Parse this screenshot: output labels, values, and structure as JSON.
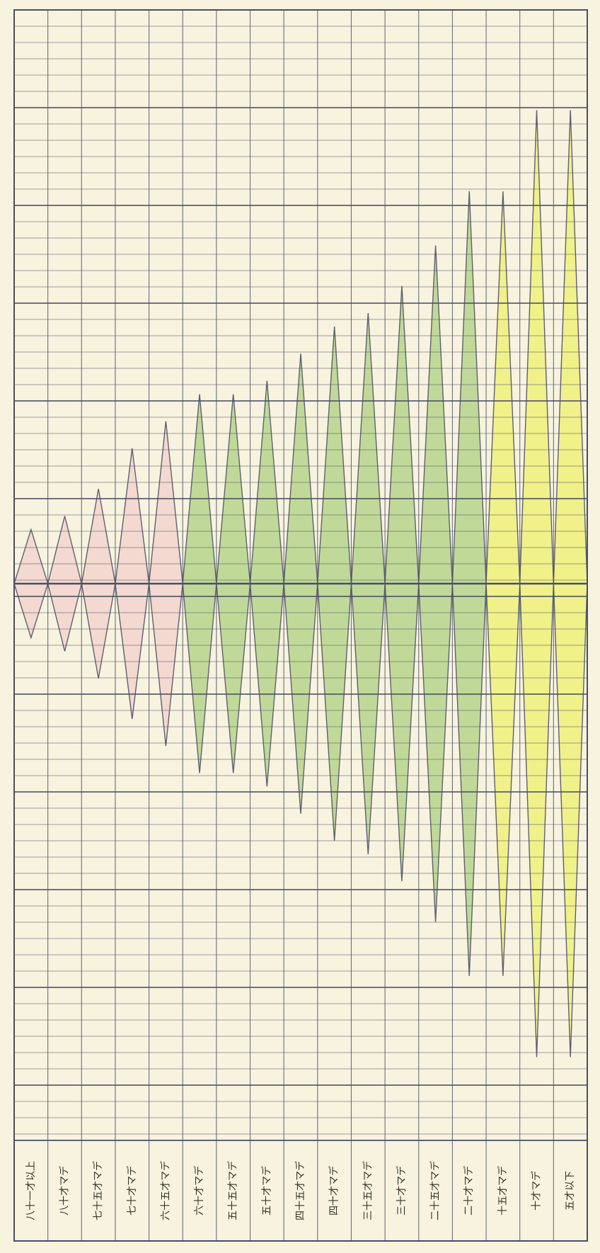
{
  "chart_data": {
    "type": "bar",
    "orientation": "rotated",
    "style": "hand-drawn diamond spindle profile on graph paper, symmetric about a central baseline",
    "grid": true,
    "legend": "none",
    "categories": [
      "八十一才以上",
      "八十才マデ",
      "七十五才マデ",
      "七十才マデ",
      "六十五才マデ",
      "六十才マデ",
      "五十五才マデ",
      "五十才マデ",
      "四十五才マデ",
      "四十才マデ",
      "三十五才マデ",
      "三十才マデ",
      "二十五才マデ",
      "二十才マデ",
      "十五才マデ",
      "十才マデ",
      "五才以下"
    ],
    "values": [
      4,
      5,
      7,
      10,
      12,
      14,
      14,
      15,
      17,
      19,
      20,
      22,
      25,
      29,
      29,
      35,
      35
    ],
    "fill_colors": [
      "#f2d3cd",
      "#f2d3cd",
      "#f2d3cd",
      "#f2d3cd",
      "#f2d3cd",
      "#b6d38c",
      "#b6d38c",
      "#b6d38c",
      "#b6d38c",
      "#b6d38c",
      "#b6d38c",
      "#b6d38c",
      "#b6d38c",
      "#b6d38c",
      "#eef07a",
      "#eef07a",
      "#eef07a"
    ],
    "vlim": [
      0,
      40
    ],
    "title": "",
    "xlabel": "",
    "ylabel": ""
  },
  "colors": {
    "paper": "#f7f3df",
    "grid_line": "#4a4f63",
    "outline": "#5e6072",
    "pink": "#f2d3cd",
    "green": "#b6d38c",
    "yellow": "#eef07a"
  }
}
